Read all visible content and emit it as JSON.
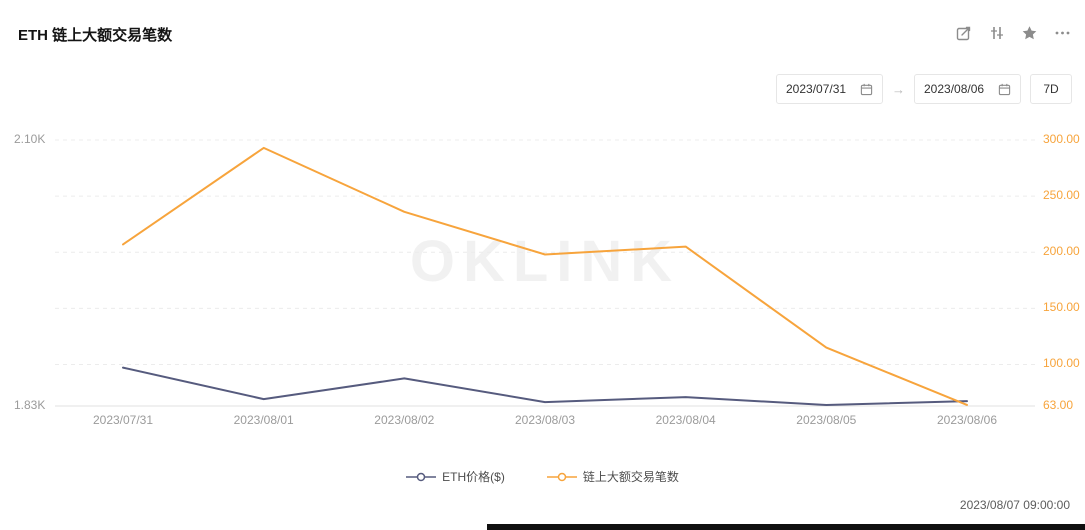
{
  "header": {
    "title": "ETH 链上大额交易笔数"
  },
  "toolbar": {
    "icons": [
      "share-edit-icon",
      "chart-type-icon",
      "favorite-star-icon",
      "more-icon"
    ]
  },
  "filters": {
    "start_date": "2023/07/31",
    "end_date": "2023/08/06",
    "arrow": "→",
    "range_label": "7D"
  },
  "chart_data": {
    "type": "line",
    "title": "ETH 链上大额交易笔数",
    "watermark": "OKLINK",
    "grid": "dashed-horizontal",
    "legend_position": "bottom",
    "x": [
      "2023/07/31",
      "2023/08/01",
      "2023/08/02",
      "2023/08/03",
      "2023/08/04",
      "2023/08/05",
      "2023/08/06"
    ],
    "series": [
      {
        "name": "ETH价格($)",
        "axis": "left",
        "color": "#565b7e",
        "values": [
          1869,
          1837,
          1858,
          1834,
          1839,
          1831,
          1835
        ]
      },
      {
        "name": "链上大额交易笔数",
        "axis": "right",
        "color": "#f7a43c",
        "values": [
          207,
          293,
          236,
          198,
          205,
          115,
          64
        ]
      }
    ],
    "left_axis": {
      "min": 1830,
      "max": 2100,
      "labels": [
        "2.10K",
        "1.83K"
      ]
    },
    "right_axis": {
      "min": 63,
      "max": 300,
      "ticks": [
        300,
        250,
        200,
        150,
        100,
        63
      ],
      "tick_labels": [
        "300.00",
        "250.00",
        "200.00",
        "150.00",
        "100.00",
        "63.00"
      ]
    }
  },
  "footer": {
    "timestamp": "2023/08/07 09:00:00"
  }
}
